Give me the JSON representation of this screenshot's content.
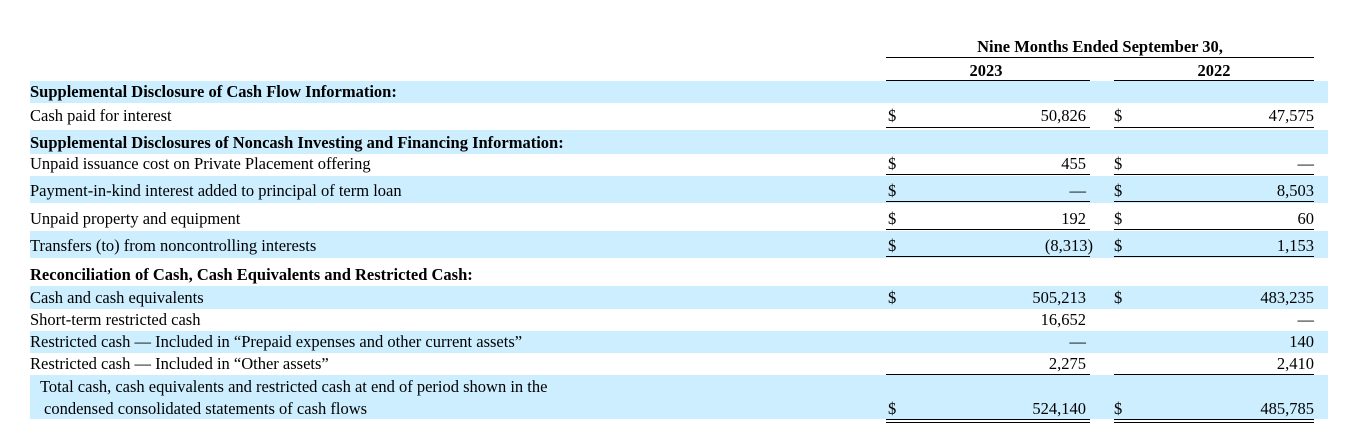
{
  "header": {
    "period": "Nine Months Ended September 30,",
    "col1": "2023",
    "col2": "2022"
  },
  "rows": [
    {
      "label": "Supplemental Disclosure of Cash Flow Information:",
      "bold": true
    },
    {
      "label": "Cash paid for interest",
      "d1": "$",
      "v1": "50,826",
      "d2": "$",
      "v2": "47,575"
    },
    {
      "label": "Supplemental Disclosures of Noncash Investing and Financing Information:",
      "bold": true
    },
    {
      "label": "Unpaid issuance cost on Private Placement offering",
      "d1": "$",
      "v1": "455",
      "d2": "$",
      "v2": "—"
    },
    {
      "label": "Payment-in-kind interest added to principal of term loan",
      "d1": "$",
      "v1": "—",
      "d2": "$",
      "v2": "8,503"
    },
    {
      "label": "Unpaid property and equipment",
      "d1": "$",
      "v1": "192",
      "d2": "$",
      "v2": "60"
    },
    {
      "label": "Transfers (to) from noncontrolling interests",
      "d1": "$",
      "v1": "(8,313)",
      "d2": "$",
      "v2": "1,153"
    },
    {
      "label": "Reconciliation of Cash, Cash Equivalents and Restricted Cash:",
      "bold": true
    },
    {
      "label": "Cash and cash equivalents",
      "d1": "$",
      "v1": "505,213",
      "d2": "$",
      "v2": "483,235"
    },
    {
      "label": "Short-term restricted cash",
      "v1": "16,652",
      "v2": "—"
    },
    {
      "label": "Restricted cash — Included in “Prepaid expenses and other current assets”",
      "v1": "—",
      "v2": "140"
    },
    {
      "label": "Restricted cash — Included in “Other assets”",
      "v1": "2,275",
      "v2": "2,410"
    },
    {
      "label_line1": "Total cash, cash equivalents and restricted cash at end of period shown in the",
      "label_line2": "condensed consolidated statements of cash flows",
      "d1": "$",
      "v1": "524,140",
      "d2": "$",
      "v2": "485,785"
    }
  ]
}
